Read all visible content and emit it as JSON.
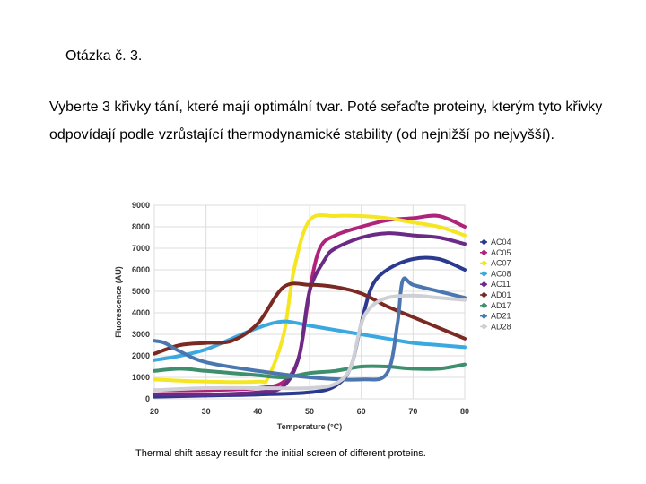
{
  "question": {
    "title": "Otázka č. 3.",
    "text": "Vyberte 3 křivky tání, které mají optimální tvar. Poté seřaďte proteiny, kterým tyto křivky odpovídají podle vzrůstající thermodynamické stability  (od nejnižší po nejvyšší)."
  },
  "caption": "Thermal shift assay result for the initial screen of different proteins.",
  "chart_data": {
    "type": "line",
    "xlabel": "Temperature (°C)",
    "ylabel": "Fluorescence (AU)",
    "xlim": [
      20,
      80
    ],
    "ylim": [
      0,
      9000
    ],
    "xticks": [
      20,
      30,
      40,
      50,
      60,
      70,
      80
    ],
    "yticks": [
      0,
      1000,
      2000,
      3000,
      4000,
      5000,
      6000,
      7000,
      8000,
      9000
    ],
    "grid": true,
    "legend_position": "right",
    "series": [
      {
        "name": "AC04",
        "color": "#2b3a8f",
        "x": [
          20,
          30,
          40,
          50,
          55,
          58,
          60,
          62,
          65,
          70,
          75,
          80
        ],
        "y": [
          100,
          150,
          200,
          300,
          600,
          1500,
          3500,
          5200,
          6000,
          6500,
          6500,
          6000
        ]
      },
      {
        "name": "AC05",
        "color": "#b0237a",
        "x": [
          20,
          30,
          40,
          45,
          48,
          50,
          52,
          55,
          60,
          65,
          70,
          75,
          80
        ],
        "y": [
          400,
          400,
          500,
          800,
          2000,
          5000,
          7000,
          7600,
          8000,
          8300,
          8400,
          8500,
          8000
        ]
      },
      {
        "name": "AC07",
        "color": "#f5e624",
        "x": [
          20,
          30,
          40,
          42,
          45,
          47,
          50,
          55,
          60,
          65,
          70,
          75,
          80
        ],
        "y": [
          900,
          800,
          800,
          1000,
          3000,
          6000,
          8300,
          8500,
          8500,
          8400,
          8200,
          8000,
          7600
        ]
      },
      {
        "name": "AC08",
        "color": "#3ba9e0",
        "x": [
          20,
          25,
          30,
          35,
          40,
          45,
          50,
          55,
          60,
          65,
          70,
          75,
          80
        ],
        "y": [
          1800,
          2000,
          2300,
          2800,
          3300,
          3600,
          3400,
          3200,
          3000,
          2800,
          2600,
          2500,
          2400
        ]
      },
      {
        "name": "AC11",
        "color": "#6b2a86",
        "x": [
          20,
          30,
          40,
          45,
          48,
          50,
          53,
          55,
          60,
          65,
          70,
          75,
          80
        ],
        "y": [
          200,
          200,
          300,
          600,
          2000,
          5000,
          6500,
          7000,
          7500,
          7700,
          7600,
          7500,
          7200
        ]
      },
      {
        "name": "AD01",
        "color": "#7a2a22",
        "x": [
          20,
          25,
          30,
          35,
          40,
          45,
          50,
          55,
          60,
          65,
          70,
          75,
          80
        ],
        "y": [
          2100,
          2500,
          2600,
          2700,
          3500,
          5200,
          5300,
          5200,
          4900,
          4300,
          3800,
          3300,
          2800
        ]
      },
      {
        "name": "AD17",
        "color": "#3d8f6e",
        "x": [
          20,
          25,
          30,
          35,
          40,
          45,
          50,
          55,
          60,
          65,
          70,
          75,
          80
        ],
        "y": [
          1300,
          1400,
          1300,
          1200,
          1100,
          1000,
          1200,
          1300,
          1500,
          1500,
          1400,
          1400,
          1600
        ]
      },
      {
        "name": "AD21",
        "color": "#4b76b0",
        "x": [
          20,
          22,
          25,
          30,
          40,
          50,
          60,
          65,
          67,
          68,
          70,
          75,
          80
        ],
        "y": [
          2700,
          2600,
          2200,
          1700,
          1300,
          1000,
          900,
          1200,
          3500,
          5500,
          5300,
          5000,
          4700
        ]
      },
      {
        "name": "AD28",
        "color": "#cfcfd6",
        "x": [
          20,
          30,
          40,
          50,
          55,
          58,
          60,
          62,
          65,
          70,
          75,
          80
        ],
        "y": [
          400,
          500,
          500,
          500,
          700,
          1500,
          3500,
          4300,
          4700,
          4800,
          4700,
          4600
        ]
      }
    ]
  }
}
